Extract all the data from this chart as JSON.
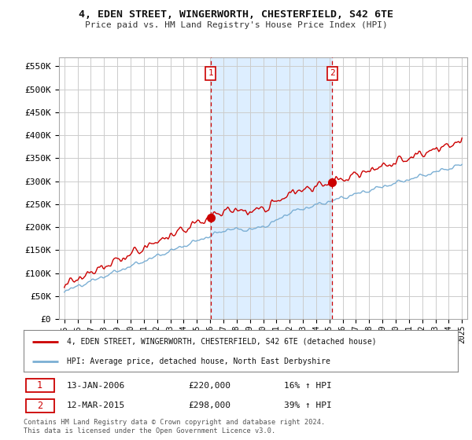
{
  "title_line1": "4, EDEN STREET, WINGERWORTH, CHESTERFIELD, S42 6TE",
  "title_line2": "Price paid vs. HM Land Registry's House Price Index (HPI)",
  "ylim": [
    0,
    570000
  ],
  "yticks": [
    0,
    50000,
    100000,
    150000,
    200000,
    250000,
    300000,
    350000,
    400000,
    450000,
    500000,
    550000
  ],
  "ytick_labels": [
    "£0",
    "£50K",
    "£100K",
    "£150K",
    "£200K",
    "£250K",
    "£300K",
    "£350K",
    "£400K",
    "£450K",
    "£500K",
    "£550K"
  ],
  "sale1_date_label": "13-JAN-2006",
  "sale1_price_label": "£220,000",
  "sale1_hpi_label": "16% ↑ HPI",
  "sale2_date_label": "12-MAR-2015",
  "sale2_price_label": "£298,000",
  "sale2_hpi_label": "39% ↑ HPI",
  "sale1_x": 2006.04,
  "sale1_y": 220000,
  "sale2_x": 2015.21,
  "sale2_y": 298000,
  "legend_line1": "4, EDEN STREET, WINGERWORTH, CHESTERFIELD, S42 6TE (detached house)",
  "legend_line2": "HPI: Average price, detached house, North East Derbyshire",
  "footer": "Contains HM Land Registry data © Crown copyright and database right 2024.\nThis data is licensed under the Open Government Licence v3.0.",
  "background_color": "#ffffff",
  "grid_color": "#cccccc",
  "hpi_line_color": "#7bafd4",
  "price_line_color": "#cc0000",
  "shade_color": "#ddeeff",
  "xmin": 1995,
  "xmax": 2025
}
